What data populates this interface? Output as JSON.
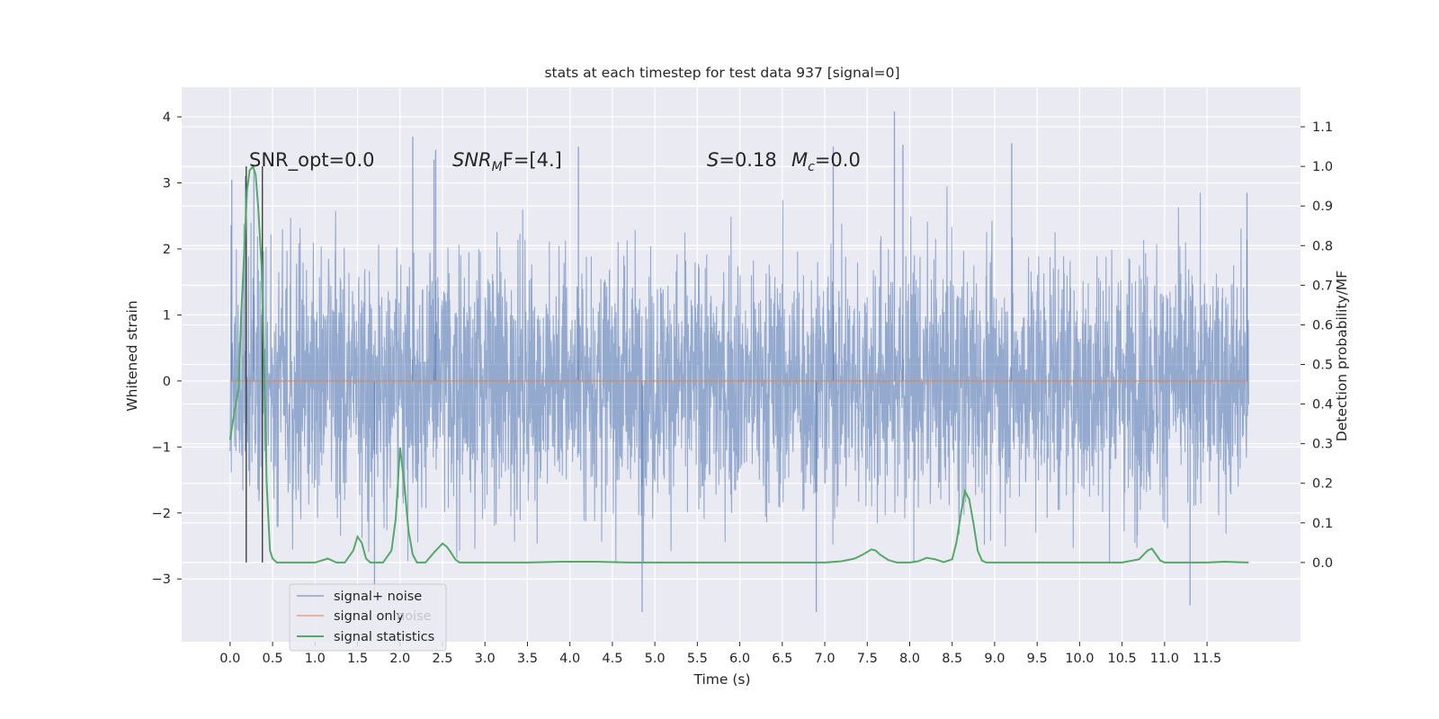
{
  "chart_data": {
    "type": "line",
    "title": "stats at each timestep for test data 937 [signal=0]",
    "xlabel": "Time (s)",
    "ylabel": "Whitened strain",
    "y2label": "Detection probability/MF",
    "xlim": [
      -0.57,
      12.6
    ],
    "ylim": [
      -3.95,
      4.45
    ],
    "y2lim": [
      -0.2,
      1.2
    ],
    "x_ticks": [
      "0.0",
      "0.5",
      "1.0",
      "1.5",
      "2.0",
      "2.5",
      "3.0",
      "3.5",
      "4.0",
      "4.5",
      "5.0",
      "5.5",
      "6.0",
      "6.5",
      "7.0",
      "7.5",
      "8.0",
      "8.5",
      "9.0",
      "9.5",
      "10.0",
      "10.5",
      "11.0",
      "11.5"
    ],
    "y_ticks": [
      4,
      3,
      2,
      1,
      0,
      -1,
      -2,
      -3
    ],
    "y2_ticks": [
      "1.1",
      "1.0",
      "0.9",
      "0.8",
      "0.7",
      "0.6",
      "0.5",
      "0.4",
      "0.3",
      "0.2",
      "0.1",
      "0.0"
    ],
    "grid": true,
    "legend_position": "lower-left",
    "background": "#eaeaf2",
    "series": [
      {
        "name": "signal+ noise",
        "axis": "left",
        "color": "#4c72b0",
        "alpha": 0.5,
        "description_range": [
          -2.8,
          4.1
        ],
        "x_start": 0.0,
        "x_end": 11.99,
        "noise_sigma": 0.95,
        "spikes": [
          [
            7.82,
            4.08
          ],
          [
            7.92,
            3.58
          ],
          [
            0.02,
            3.05
          ],
          [
            0.18,
            3.1
          ],
          [
            0.28,
            3.2
          ],
          [
            2.15,
            3.7
          ],
          [
            2.4,
            3.35
          ],
          [
            4.1,
            3.55
          ],
          [
            2.42,
            3.5
          ],
          [
            7.1,
            3.55
          ],
          [
            9.2,
            3.6
          ],
          [
            11.97,
            2.85
          ],
          [
            4.85,
            -3.5
          ],
          [
            6.9,
            -3.5
          ],
          [
            11.3,
            -3.4
          ],
          [
            1.7,
            -3.3
          ]
        ]
      },
      {
        "name": "signal only",
        "axis": "left",
        "color": "#dd8452",
        "constant": 0.0
      },
      {
        "name": "signal statistics",
        "axis": "right",
        "color": "#55a868",
        "x": [
          0.0,
          0.05,
          0.1,
          0.13,
          0.17,
          0.2,
          0.23,
          0.27,
          0.3,
          0.33,
          0.37,
          0.4,
          0.43,
          0.47,
          0.5,
          0.55,
          0.6,
          0.8,
          1.0,
          1.15,
          1.25,
          1.3,
          1.35,
          1.45,
          1.5,
          1.55,
          1.6,
          1.65,
          1.8,
          1.9,
          1.95,
          2.0,
          2.05,
          2.1,
          2.15,
          2.2,
          2.25,
          2.3,
          2.4,
          2.5,
          2.55,
          2.6,
          2.65,
          2.7,
          2.8,
          3.0,
          3.5,
          3.9,
          4.3,
          4.7,
          5.5,
          6.5,
          7.0,
          7.2,
          7.35,
          7.45,
          7.55,
          7.6,
          7.65,
          7.75,
          7.85,
          8.0,
          8.1,
          8.2,
          8.3,
          8.4,
          8.5,
          8.55,
          8.6,
          8.65,
          8.7,
          8.75,
          8.8,
          8.85,
          8.9,
          9.0,
          9.5,
          10.0,
          10.5,
          10.7,
          10.8,
          10.85,
          10.9,
          10.95,
          11.0,
          11.2,
          11.5,
          11.7,
          11.99
        ],
        "y": [
          0.31,
          0.38,
          0.44,
          0.62,
          0.8,
          0.94,
          0.99,
          1.0,
          0.98,
          0.9,
          0.75,
          0.5,
          0.2,
          0.03,
          0.01,
          0.0,
          0.0,
          0.0,
          0.0,
          0.01,
          0.0,
          0.0,
          0.0,
          0.03,
          0.065,
          0.05,
          0.01,
          0.0,
          0.0,
          0.03,
          0.11,
          0.29,
          0.2,
          0.08,
          0.02,
          0.0,
          0.0,
          0.0,
          0.025,
          0.048,
          0.04,
          0.025,
          0.008,
          0.0,
          0.0,
          0.0,
          0.0,
          0.002,
          0.002,
          0.0,
          0.0,
          0.0,
          0.0,
          0.003,
          0.01,
          0.02,
          0.033,
          0.03,
          0.02,
          0.006,
          0.0,
          0.0,
          0.003,
          0.012,
          0.008,
          0.001,
          0.008,
          0.05,
          0.12,
          0.18,
          0.16,
          0.1,
          0.03,
          0.005,
          0.0,
          0.0,
          0.0,
          0.0,
          0.0,
          0.008,
          0.03,
          0.035,
          0.02,
          0.005,
          0.0,
          0.0,
          0.0,
          0.002,
          0.0
        ]
      }
    ],
    "vertical_lines": [
      0.19,
      0.38
    ],
    "annotations": {
      "snr_opt": "SNR_opt=0.0",
      "snr_mf": "SNR_MF=[4.]",
      "s_value": "S=0.18",
      "mc_value": "M_c=0.0"
    },
    "legend": [
      "signal+ noise",
      "signal only",
      "signal statistics"
    ],
    "legend_hidden_text": "noise"
  }
}
